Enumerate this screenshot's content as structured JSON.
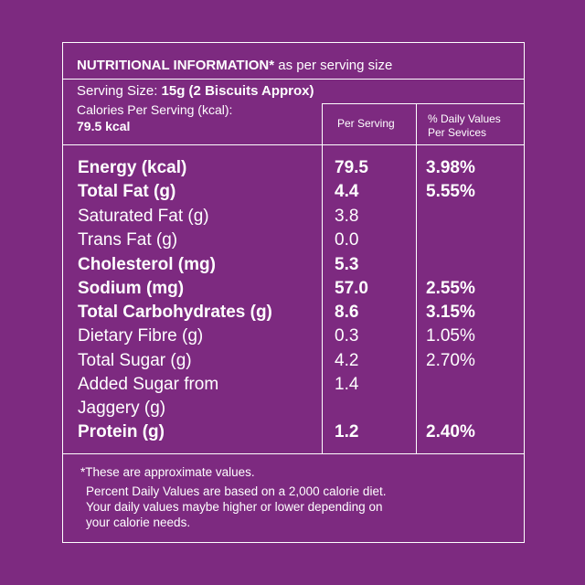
{
  "title": {
    "bold": "NUTRITIONAL INFORMATION*",
    "rest": " as per serving size"
  },
  "serving_size": {
    "label": "Serving Size: ",
    "value": "15g (2 Biscuits Approx)"
  },
  "calories_per_serving": {
    "label": "Calories Per Serving (kcal):",
    "value": "79.5 kcal"
  },
  "columns": {
    "per_serving": "Per Serving",
    "daily_values_line1": "% Daily Values",
    "daily_values_line2": "Per Sevices"
  },
  "rows": [
    {
      "label": "Energy (kcal)",
      "per_serving": "79.5",
      "daily_value": "3.98%",
      "bold": true
    },
    {
      "label": "Total Fat (g)",
      "per_serving": "4.4",
      "daily_value": "5.55%",
      "bold": true
    },
    {
      "label": "Saturated Fat (g)",
      "per_serving": "3.8",
      "daily_value": "",
      "bold": false
    },
    {
      "label": "Trans Fat (g)",
      "per_serving": "0.0",
      "daily_value": "",
      "bold": false
    },
    {
      "label": "Cholesterol (mg)",
      "per_serving": "5.3",
      "daily_value": "",
      "bold": true
    },
    {
      "label": "Sodium (mg)",
      "per_serving": "57.0",
      "daily_value": "2.55%",
      "bold": true
    },
    {
      "label": "Total Carbohydrates (g)",
      "per_serving": "8.6",
      "daily_value": "3.15%",
      "bold": true
    },
    {
      "label": "Dietary Fibre (g)",
      "per_serving": "0.3",
      "daily_value": "1.05%",
      "bold": false
    },
    {
      "label": "Total Sugar (g)",
      "per_serving": "4.2",
      "daily_value": "2.70%",
      "bold": false
    },
    {
      "label": "Added Sugar from",
      "per_serving": "1.4",
      "daily_value": "",
      "bold": false
    },
    {
      "label": "Jaggery (g)",
      "per_serving": "",
      "daily_value": "",
      "bold": false
    },
    {
      "label": "Protein (g)",
      "per_serving": "1.2",
      "daily_value": "2.40%",
      "bold": true
    }
  ],
  "notes": [
    "*These are approximate values.",
    "Percent Daily Values are based on a 2,000 calorie diet.",
    "Your daily values maybe higher or lower depending on",
    "your calorie needs."
  ],
  "colors": {
    "background": "#7d2a80",
    "text": "#ffffff",
    "rules": "#ffffff"
  }
}
